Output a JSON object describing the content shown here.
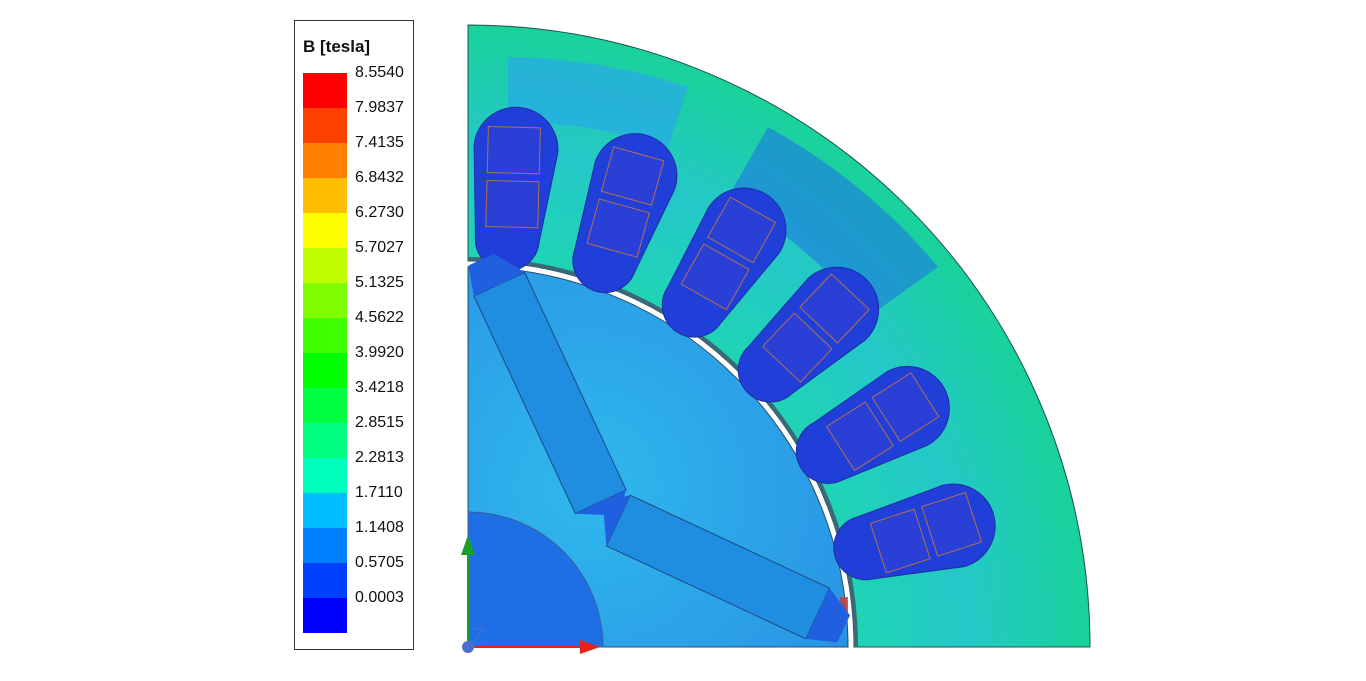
{
  "legend": {
    "title": "B [tesla]",
    "ticks": [
      "8.5540",
      "7.9837",
      "7.4135",
      "6.8432",
      "6.2730",
      "5.7027",
      "5.1325",
      "4.5622",
      "3.9920",
      "3.4218",
      "2.8515",
      "2.2813",
      "1.7110",
      "1.1408",
      "0.5705",
      "0.0003"
    ],
    "colors": [
      "#ff0000",
      "#ff4000",
      "#ff8000",
      "#ffbf00",
      "#ffff00",
      "#bfff00",
      "#80ff00",
      "#40ff00",
      "#00ff00",
      "#00ff40",
      "#00ff80",
      "#00ffbf",
      "#00bfff",
      "#0080ff",
      "#0040ff",
      "#0000ff"
    ]
  },
  "model": {
    "field_colors": {
      "stator_base": "#19d6a2",
      "rotor_base": "#2aa2ea",
      "shaft": "#1e6fe6",
      "slot": "#1f3fd8",
      "conductor": "#2a3fd6",
      "magnet": "#1f8de0",
      "hot_spot": "#c84040"
    },
    "axis_colors": {
      "x": "#e8221a",
      "y": "#18a02a",
      "z": "#4a6fd0"
    }
  }
}
